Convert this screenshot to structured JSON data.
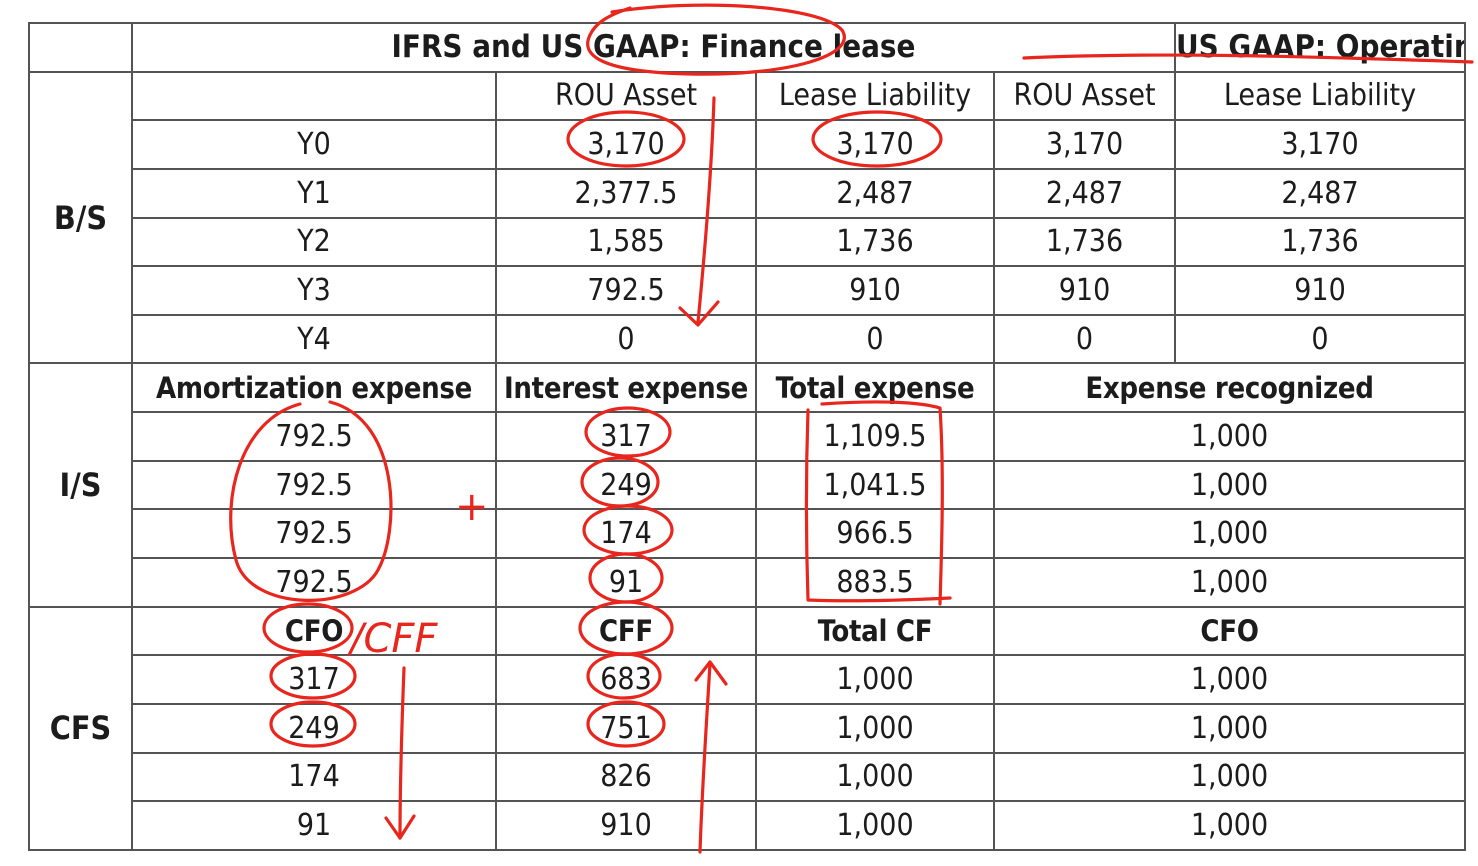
{
  "header": {
    "finance_title": "IFRS and US GAAP: Finance lease",
    "operating_title": "US GAAP: Operating lease"
  },
  "bs": {
    "section_label": "B/S",
    "col_rou_asset": "ROU Asset",
    "col_lease_liability": "Lease Liability",
    "op_col_rou_asset": "ROU Asset",
    "op_col_lease_liability": "Lease Liability",
    "rows": [
      {
        "year": "Y0",
        "rou": "3,170",
        "liability": "3,170",
        "op_rou": "3,170",
        "op_liability": "3,170"
      },
      {
        "year": "Y1",
        "rou": "2,377.5",
        "liability": "2,487",
        "op_rou": "2,487",
        "op_liability": "2,487"
      },
      {
        "year": "Y2",
        "rou": "1,585",
        "liability": "1,736",
        "op_rou": "1,736",
        "op_liability": "1,736"
      },
      {
        "year": "Y3",
        "rou": "792.5",
        "liability": "910",
        "op_rou": "910",
        "op_liability": "910"
      },
      {
        "year": "Y4",
        "rou": "0",
        "liability": "0",
        "op_rou": "0",
        "op_liability": "0"
      }
    ]
  },
  "is": {
    "section_label": "I/S",
    "col_amortization": "Amortization expense",
    "col_interest": "Interest expense",
    "col_total": "Total expense",
    "col_recognized": "Expense recognized",
    "rows": [
      {
        "amortization": "792.5",
        "interest": "317",
        "total": "1,109.5",
        "recognized": "1,000"
      },
      {
        "amortization": "792.5",
        "interest": "249",
        "total": "1,041.5",
        "recognized": "1,000"
      },
      {
        "amortization": "792.5",
        "interest": "174",
        "total": "966.5",
        "recognized": "1,000"
      },
      {
        "amortization": "792.5",
        "interest": "91",
        "total": "883.5",
        "recognized": "1,000"
      }
    ]
  },
  "cfs": {
    "section_label": "CFS",
    "col_cfo": "CFO",
    "col_cff": "CFF",
    "col_total_cf": "Total CF",
    "col_op_cfo": "CFO",
    "rows": [
      {
        "cfo": "317",
        "cff": "683",
        "total_cf": "1,000",
        "op_cfo": "1,000"
      },
      {
        "cfo": "249",
        "cff": "751",
        "total_cf": "1,000",
        "op_cfo": "1,000"
      },
      {
        "cfo": "174",
        "cff": "826",
        "total_cf": "1,000",
        "op_cfo": "1,000"
      },
      {
        "cfo": "91",
        "cff": "910",
        "total_cf": "1,000",
        "op_cfo": "1,000"
      }
    ]
  },
  "annotations": {
    "plus_sign": "+",
    "cff_note": "/CFF",
    "ink_color": "#e8261d"
  }
}
